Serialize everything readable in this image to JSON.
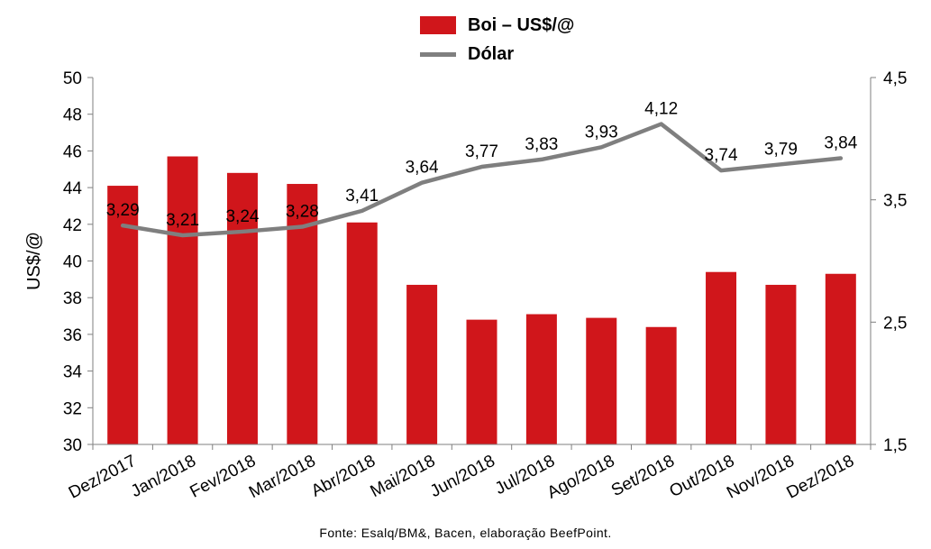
{
  "chart_data": {
    "type": "bar",
    "categories": [
      "Dez/2017",
      "Jan/2018",
      "Fev/2018",
      "Mar/2018",
      "Abr/2018",
      "Mai/2018",
      "Jun/2018",
      "Jul/2018",
      "Ago/2018",
      "Set/2018",
      "Out/2018",
      "Nov/2018",
      "Dez/2018"
    ],
    "series": [
      {
        "name": "Boi – US$/@",
        "type": "bar",
        "axis": "left",
        "color": "#d0161b",
        "values": [
          44.1,
          45.7,
          44.8,
          44.2,
          42.1,
          38.7,
          36.8,
          37.1,
          36.9,
          36.4,
          39.4,
          38.7,
          39.3
        ]
      },
      {
        "name": "Dólar",
        "type": "line",
        "axis": "right",
        "color": "#7f7f7f",
        "values": [
          3.29,
          3.21,
          3.24,
          3.28,
          3.41,
          3.64,
          3.77,
          3.83,
          3.93,
          4.12,
          3.74,
          3.79,
          3.84
        ],
        "labels": [
          "3,29",
          "3,21",
          "3,24",
          "3,28",
          "3,41",
          "3,64",
          "3,77",
          "3,83",
          "3,93",
          "4,12",
          "3,74",
          "3,79",
          "3,84"
        ]
      }
    ],
    "ylabel": "US$/@",
    "ylim": [
      30,
      50
    ],
    "yticks": [
      "30",
      "32",
      "34",
      "36",
      "38",
      "40",
      "42",
      "44",
      "46",
      "48",
      "50"
    ],
    "y2lim": [
      1.5,
      4.5
    ],
    "y2ticks": [
      "1,5",
      "2,5",
      "3,5",
      "4,5"
    ],
    "grid": false,
    "legend_position": "top-center"
  },
  "legend": {
    "bar_label": "Boi – US$/@",
    "line_label": "Dólar"
  },
  "source": "Fonte: Esalq/BM&, Bacen, elaboração BeefPoint."
}
